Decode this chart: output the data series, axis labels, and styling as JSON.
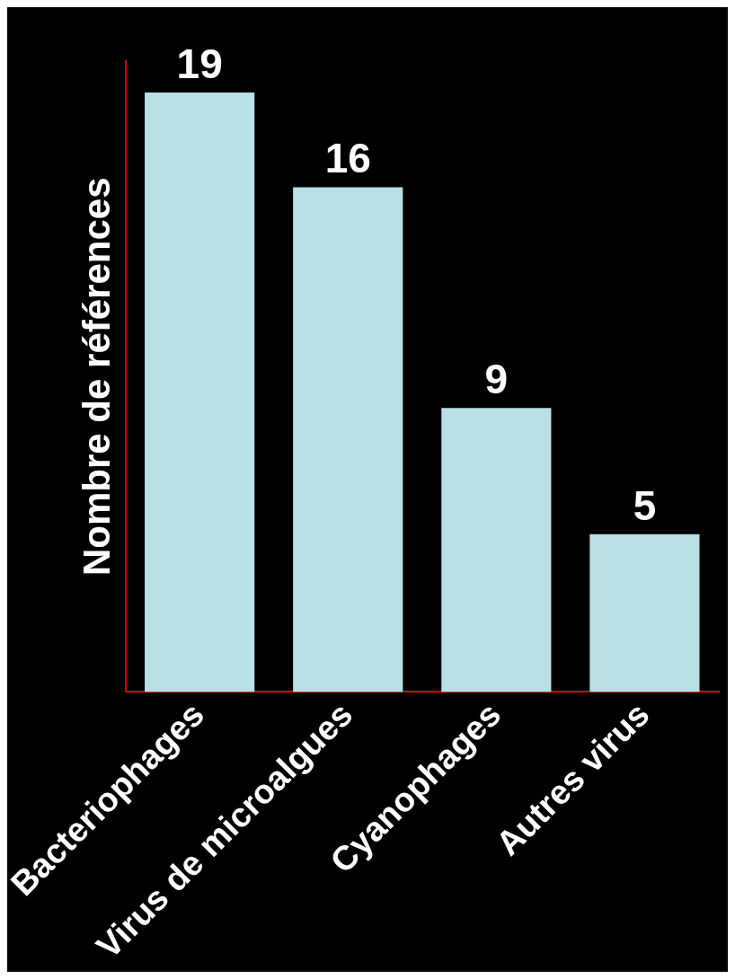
{
  "chart_data": {
    "type": "bar",
    "ylabel": "Nombre de références",
    "categories": [
      "Bacteriophages",
      "Virus de microalgues",
      "Cyanophages",
      "Autres virus"
    ],
    "values": [
      19,
      16,
      9,
      5
    ],
    "color": "#b9e0e4",
    "data_labels": true,
    "grid": false,
    "legend": false
  }
}
